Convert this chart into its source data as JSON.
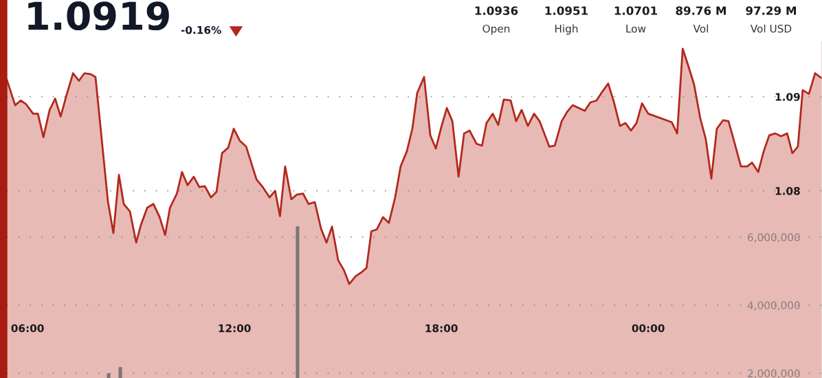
{
  "chart_data": {
    "type": "area",
    "title": "1.0919",
    "subtitle": "-0.16%",
    "annotations": [
      "1.0936",
      "Open",
      "1.0951",
      "High",
      "1.0701",
      "Low",
      "89.76 M",
      "Vol",
      "97.29 M",
      "Vol USD"
    ],
    "xlim": [
      5.4,
      29.04
    ],
    "xticks": [
      {
        "value": 6,
        "label": "06:00"
      },
      {
        "value": 12,
        "label": "12:00"
      },
      {
        "value": 18,
        "label": "18:00"
      },
      {
        "value": 24,
        "label": "00:00"
      }
    ],
    "ylim": [
      1.0601,
      1.0959
    ],
    "yticks": [
      1.08,
      1.09
    ],
    "y2lim": [
      1860000,
      11760000
    ],
    "y2ticks": [
      {
        "value": 2000000,
        "label": "2,000,000"
      },
      {
        "value": 4000000,
        "label": "4,000,000"
      },
      {
        "value": 6000000,
        "label": "6,000,000"
      }
    ],
    "grid": "y",
    "legend": false,
    "marker": "none",
    "line_style": "solid",
    "series": [
      {
        "color": "#b3281c",
        "x": [
          5.4,
          5.64,
          5.8,
          5.96,
          6.16,
          6.3,
          6.46,
          6.64,
          6.8,
          6.96,
          7.14,
          7.32,
          7.49,
          7.65,
          7.83,
          7.97,
          8.33,
          8.49,
          8.65,
          8.79,
          8.97,
          9.15,
          9.29,
          9.47,
          9.65,
          9.83,
          9.99,
          10.13,
          10.33,
          10.48,
          10.64,
          10.82,
          10.98,
          11.14,
          11.32,
          11.48,
          11.64,
          11.82,
          11.98,
          12.16,
          12.34,
          12.64,
          12.82,
          13.02,
          13.18,
          13.32,
          13.47,
          13.65,
          13.81,
          13.99,
          14.15,
          14.33,
          14.51,
          14.67,
          14.83,
          15.01,
          15.17,
          15.33,
          15.51,
          15.67,
          15.83,
          15.97,
          16.13,
          16.31,
          16.48,
          16.66,
          16.82,
          17.0,
          17.16,
          17.3,
          17.5,
          17.68,
          17.84,
          18.0,
          18.16,
          18.32,
          18.5,
          18.66,
          18.82,
          19.02,
          19.18,
          19.31,
          19.49,
          19.65,
          19.81,
          20.01,
          20.17,
          20.33,
          20.51,
          20.69,
          20.85,
          21.13,
          21.29,
          21.49,
          21.65,
          21.81,
          21.99,
          22.16,
          22.32,
          22.5,
          22.68,
          22.84,
          23.0,
          23.18,
          23.34,
          23.5,
          23.66,
          23.82,
          24.0,
          24.68,
          24.84,
          25.0,
          25.17,
          25.33,
          25.51,
          25.67,
          25.83,
          25.99,
          26.17,
          26.33,
          26.51,
          26.69,
          26.87,
          27.01,
          27.19,
          27.35,
          27.51,
          27.69,
          27.85,
          28.03,
          28.18,
          28.34,
          28.48,
          28.66,
          28.84,
          29.02
        ],
        "values": [
          1.0918,
          1.0891,
          1.0896,
          1.0892,
          1.0882,
          1.0882,
          1.0857,
          1.0886,
          1.0898,
          1.0879,
          1.0903,
          1.0925,
          1.0917,
          1.0925,
          1.0924,
          1.0921,
          1.0789,
          1.0755,
          1.0817,
          1.0786,
          1.0778,
          1.0745,
          1.0764,
          1.0782,
          1.0786,
          1.0772,
          1.0753,
          1.0782,
          1.0797,
          1.082,
          1.0806,
          1.0815,
          1.0804,
          1.0805,
          1.0793,
          1.0799,
          1.084,
          1.0846,
          1.0866,
          1.0853,
          1.0847,
          1.0812,
          1.0804,
          1.0793,
          1.08,
          1.0773,
          1.0826,
          1.0791,
          1.0796,
          1.0797,
          1.0786,
          1.0788,
          1.076,
          1.0745,
          1.0762,
          1.0726,
          1.0716,
          1.0701,
          1.0709,
          1.0713,
          1.0718,
          1.0757,
          1.0759,
          1.0772,
          1.0766,
          1.0793,
          1.0826,
          1.0842,
          1.0866,
          1.0904,
          1.0921,
          1.0859,
          1.0845,
          1.0868,
          1.0888,
          1.0874,
          1.0815,
          1.0861,
          1.0864,
          1.085,
          1.0848,
          1.0872,
          1.0882,
          1.087,
          1.0897,
          1.0896,
          1.0874,
          1.0886,
          1.0869,
          1.0882,
          1.0874,
          1.0847,
          1.0848,
          1.0874,
          1.0884,
          1.0891,
          1.0888,
          1.0885,
          1.0894,
          1.0896,
          1.0906,
          1.0914,
          1.0895,
          1.0869,
          1.0872,
          1.0864,
          1.0872,
          1.0893,
          1.0882,
          1.0873,
          1.0861,
          1.0951,
          1.0932,
          1.0913,
          1.0877,
          1.0855,
          1.0813,
          1.0866,
          1.0875,
          1.0874,
          1.085,
          1.0826,
          1.0826,
          1.083,
          1.082,
          1.0842,
          1.0859,
          1.0861,
          1.0858,
          1.0861,
          1.084,
          1.0847,
          1.0907,
          1.0903,
          1.0925,
          1.092
        ]
      },
      {
        "type": "bar",
        "axis": "y2",
        "color": "#7b7672",
        "x": [
          8.35,
          8.69,
          13.83
        ],
        "values": [
          2000000,
          2180000,
          6320000
        ]
      }
    ]
  }
}
